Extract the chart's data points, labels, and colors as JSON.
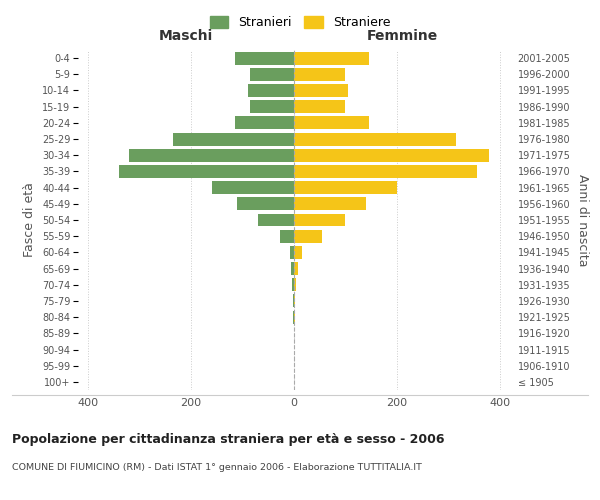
{
  "age_groups": [
    "100+",
    "95-99",
    "90-94",
    "85-89",
    "80-84",
    "75-79",
    "70-74",
    "65-69",
    "60-64",
    "55-59",
    "50-54",
    "45-49",
    "40-44",
    "35-39",
    "30-34",
    "25-29",
    "20-24",
    "15-19",
    "10-14",
    "5-9",
    "0-4"
  ],
  "birth_years": [
    "≤ 1905",
    "1906-1910",
    "1911-1915",
    "1916-1920",
    "1921-1925",
    "1926-1930",
    "1931-1935",
    "1936-1940",
    "1941-1945",
    "1946-1950",
    "1951-1955",
    "1956-1960",
    "1961-1965",
    "1966-1970",
    "1971-1975",
    "1976-1980",
    "1981-1985",
    "1986-1990",
    "1991-1995",
    "1996-2000",
    "2001-2005"
  ],
  "maschi": [
    0,
    0,
    0,
    0,
    2,
    2,
    3,
    5,
    8,
    28,
    70,
    110,
    160,
    340,
    320,
    235,
    115,
    85,
    90,
    85,
    115
  ],
  "femmine": [
    0,
    0,
    0,
    0,
    2,
    2,
    4,
    8,
    15,
    55,
    100,
    140,
    200,
    355,
    380,
    315,
    145,
    100,
    105,
    100,
    145
  ],
  "male_color": "#6a9e5e",
  "female_color": "#f5c518",
  "background_color": "#ffffff",
  "grid_color": "#cccccc",
  "title": "Popolazione per cittadinanza straniera per età e sesso - 2006",
  "subtitle": "COMUNE DI FIUMICINO (RM) - Dati ISTAT 1° gennaio 2006 - Elaborazione TUTTITALIA.IT",
  "xlabel_left": "Maschi",
  "xlabel_right": "Femmine",
  "ylabel_left": "Fasce di età",
  "ylabel_right": "Anni di nascita",
  "legend_male": "Stranieri",
  "legend_female": "Straniere",
  "xlim": 420,
  "bar_height": 0.8
}
